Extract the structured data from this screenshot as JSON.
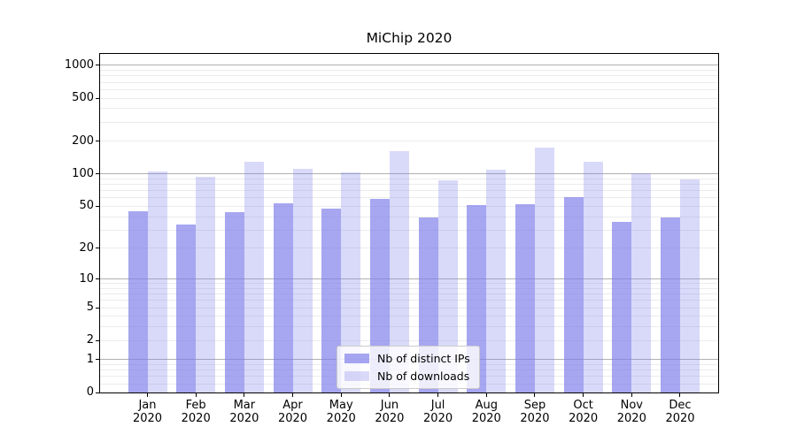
{
  "chart_data": {
    "type": "bar",
    "title": "MiChip 2020",
    "categories": [
      "Jan",
      "Feb",
      "Mar",
      "Apr",
      "May",
      "Jun",
      "Jul",
      "Aug",
      "Sep",
      "Oct",
      "Nov",
      "Dec"
    ],
    "category_year": "2020",
    "series": [
      {
        "name": "Nb of distinct IPs",
        "color": "rgba(124,124,234,0.68)",
        "values": [
          45,
          34,
          44,
          53,
          48,
          59,
          39,
          51,
          52,
          61,
          36,
          39
        ]
      },
      {
        "name": "Nb of downloads",
        "color": "rgba(124,124,234,0.29)",
        "values": [
          105,
          95,
          130,
          112,
          104,
          163,
          87,
          110,
          175,
          130,
          102,
          89
        ]
      }
    ],
    "y_ticks": [
      0,
      1,
      2,
      5,
      10,
      20,
      50,
      100,
      200,
      500,
      1000
    ],
    "y_scale": "log1p",
    "ylim": [
      0,
      1275
    ],
    "grid": {
      "major_values": [
        1,
        10,
        100,
        1000
      ],
      "minor_step_pattern": "2-9 per decade, 0.2 steps below 1",
      "major_color": "#b0b0b0",
      "minor_color": "#ececec"
    },
    "legend": {
      "position": "lower center"
    },
    "axis_color": "#000000",
    "background_color": "#ffffff"
  }
}
